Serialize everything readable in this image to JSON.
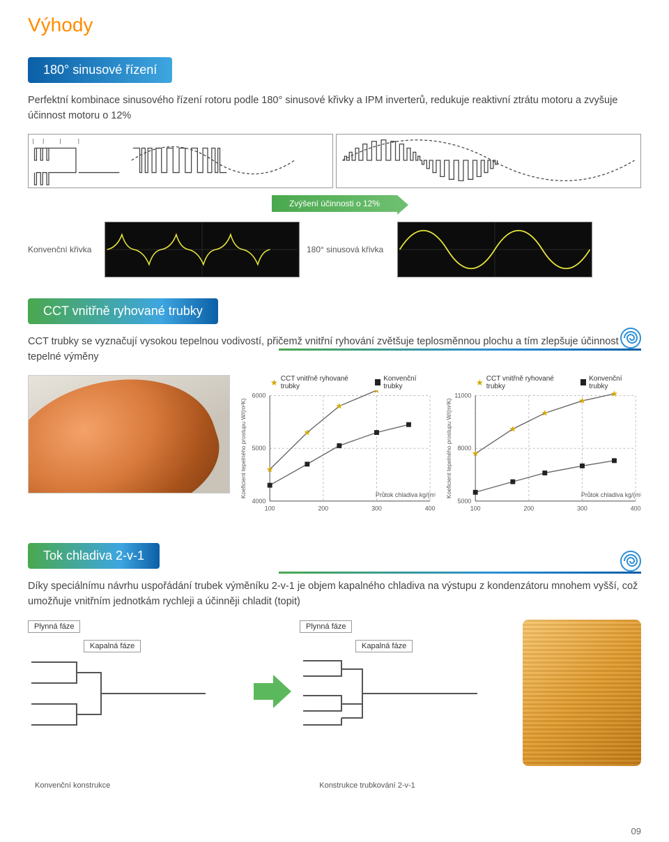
{
  "page": {
    "title": "Výhody",
    "number": "09"
  },
  "section1": {
    "heading": "180° sinusové řízení",
    "body": "Perfektní kombinace sinusového řízení rotoru podle 180° sinusové křivky a IPM inverterů, redukuje reaktivní ztrátu motoru a zvyšuje účinnost motoru o 12%",
    "badge": "Zvýšení účinnosti o 12%",
    "left_label": "Konvenční křivka",
    "right_label": "180° sinusová křivka",
    "osc_trace_color": "#e6e63a",
    "osc_bg": "#0c0c0c"
  },
  "section2": {
    "heading": "CCT vnitřně ryhované trubky",
    "body": "CCT trubky se vyznačují vysokou tepelnou vodivostí, přičemž vnitřní ryhování zvětšuje teplosměnnou plochu a tím zlepšuje účinnost tepelné výměny",
    "legend": {
      "series1": "CCT vnitřně ryhované trubky",
      "series2": "Konvenční trubky"
    },
    "chart_left": {
      "y_label": "Koeficient tepelného prostupu W/(m²K)",
      "x_label": "Průtok chladiva kg/(m²s)",
      "y_ticks": [
        4000,
        5000,
        6000
      ],
      "x_ticks": [
        100,
        200,
        300,
        400
      ],
      "series_cct": [
        [
          100,
          4600
        ],
        [
          170,
          5300
        ],
        [
          230,
          5800
        ],
        [
          300,
          6100
        ],
        [
          360,
          6250
        ]
      ],
      "series_conv": [
        [
          100,
          4300
        ],
        [
          170,
          4700
        ],
        [
          230,
          5050
        ],
        [
          300,
          5300
        ],
        [
          360,
          5450
        ]
      ],
      "star_color": "#d4a700",
      "square_color": "#222222",
      "grid_color": "#bdbdbd"
    },
    "chart_right": {
      "y_label": "Koeficient tepelného prostupu W/(m²K)",
      "x_label": "Průtok chladiva kg/(m²s)",
      "y_ticks": [
        5000,
        8000,
        11000
      ],
      "x_ticks": [
        100,
        200,
        300,
        400
      ],
      "series_cct": [
        [
          100,
          7700
        ],
        [
          170,
          9100
        ],
        [
          230,
          10000
        ],
        [
          300,
          10700
        ],
        [
          360,
          11100
        ]
      ],
      "series_conv": [
        [
          100,
          5500
        ],
        [
          170,
          6100
        ],
        [
          230,
          6600
        ],
        [
          300,
          7000
        ],
        [
          360,
          7300
        ]
      ],
      "star_color": "#d4a700",
      "square_color": "#222222",
      "grid_color": "#bdbdbd"
    }
  },
  "section3": {
    "heading": "Tok chladiva 2-v-1",
    "body": "Díky speciálnímu návrhu uspořádání trubek výměníku 2-v-1 je objem kapalného chladiva na výstupu z kondenzátoru mnohem vyšší, což umožňuje vnitřním jednotkám rychleji a účinněji chladit (topit)",
    "gas_label": "Plynná fáze",
    "liquid_label": "Kapalná fáze",
    "conv_label": "Konvenční konstrukce",
    "new_label": "Konstrukce trubkování 2-v-1",
    "arrow_color": "#5cb85c"
  },
  "colors": {
    "orange": "#ff8c00",
    "blue1": "#0b5fa6",
    "blue2": "#3ea6e0",
    "green": "#4aa84e"
  }
}
